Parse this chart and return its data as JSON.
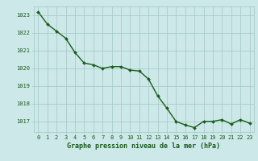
{
  "x": [
    0,
    1,
    2,
    3,
    4,
    5,
    6,
    7,
    8,
    9,
    10,
    11,
    12,
    13,
    14,
    15,
    16,
    17,
    18,
    19,
    20,
    21,
    22,
    23
  ],
  "y": [
    1023.2,
    1022.5,
    1022.1,
    1021.7,
    1020.9,
    1020.3,
    1020.2,
    1020.0,
    1020.1,
    1020.1,
    1019.9,
    1019.85,
    1019.4,
    1018.45,
    1017.75,
    1017.0,
    1016.8,
    1016.65,
    1017.0,
    1017.0,
    1017.1,
    1016.85,
    1017.1,
    1016.9
  ],
  "line_color": "#1a5c1a",
  "marker": "D",
  "marker_size": 2.0,
  "bg_color": "#cce8e8",
  "grid_color": "#aacccc",
  "xlabel": "Graphe pression niveau de la mer (hPa)",
  "xlabel_color": "#1a5c1a",
  "tick_color": "#1a5c1a",
  "ylim": [
    1016.4,
    1023.5
  ],
  "yticks": [
    1017,
    1018,
    1019,
    1020,
    1021,
    1022,
    1023
  ],
  "xlim": [
    -0.5,
    23.5
  ],
  "xticks": [
    0,
    1,
    2,
    3,
    4,
    5,
    6,
    7,
    8,
    9,
    10,
    11,
    12,
    13,
    14,
    15,
    16,
    17,
    18,
    19,
    20,
    21,
    22,
    23
  ],
  "tick_fontsize": 5.0,
  "xlabel_fontsize": 6.0,
  "linewidth": 1.0
}
